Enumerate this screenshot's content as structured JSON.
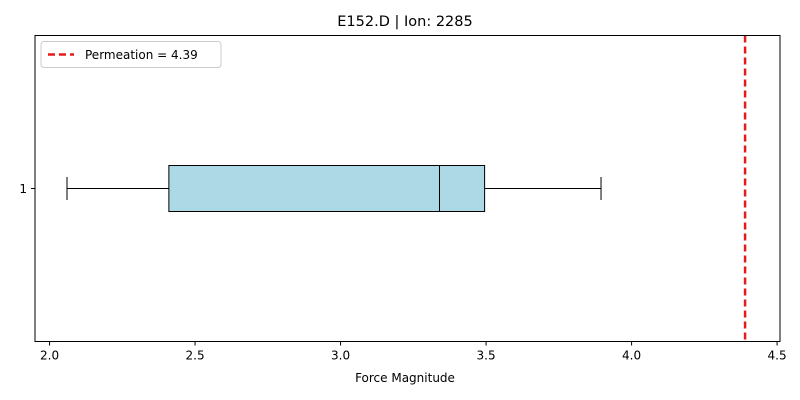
{
  "chart_data": {
    "type": "box",
    "orientation": "horizontal",
    "title": "E152.D | Ion: 2285",
    "xlabel": "Force Magnitude",
    "ylabel": "",
    "xlim": [
      1.95,
      4.51
    ],
    "x_ticks": [
      2.0,
      2.5,
      3.0,
      3.5,
      4.0,
      4.5
    ],
    "x_tick_labels": [
      "2.0",
      "2.5",
      "3.0",
      "3.5",
      "4.0",
      "4.5"
    ],
    "y_tick_labels": [
      "1"
    ],
    "grid": false,
    "legend_position": "top-left",
    "boxes": [
      {
        "label": "1",
        "whisker_low": 2.06,
        "q1": 2.41,
        "median": 3.34,
        "q3": 3.495,
        "whisker_high": 3.895,
        "fill_color": "#add8e6",
        "edge_color": "#000000"
      }
    ],
    "reference_line": {
      "value": 4.39,
      "label": "Permeation = 4.39",
      "color": "#e41a1c",
      "style": "dashed"
    }
  }
}
